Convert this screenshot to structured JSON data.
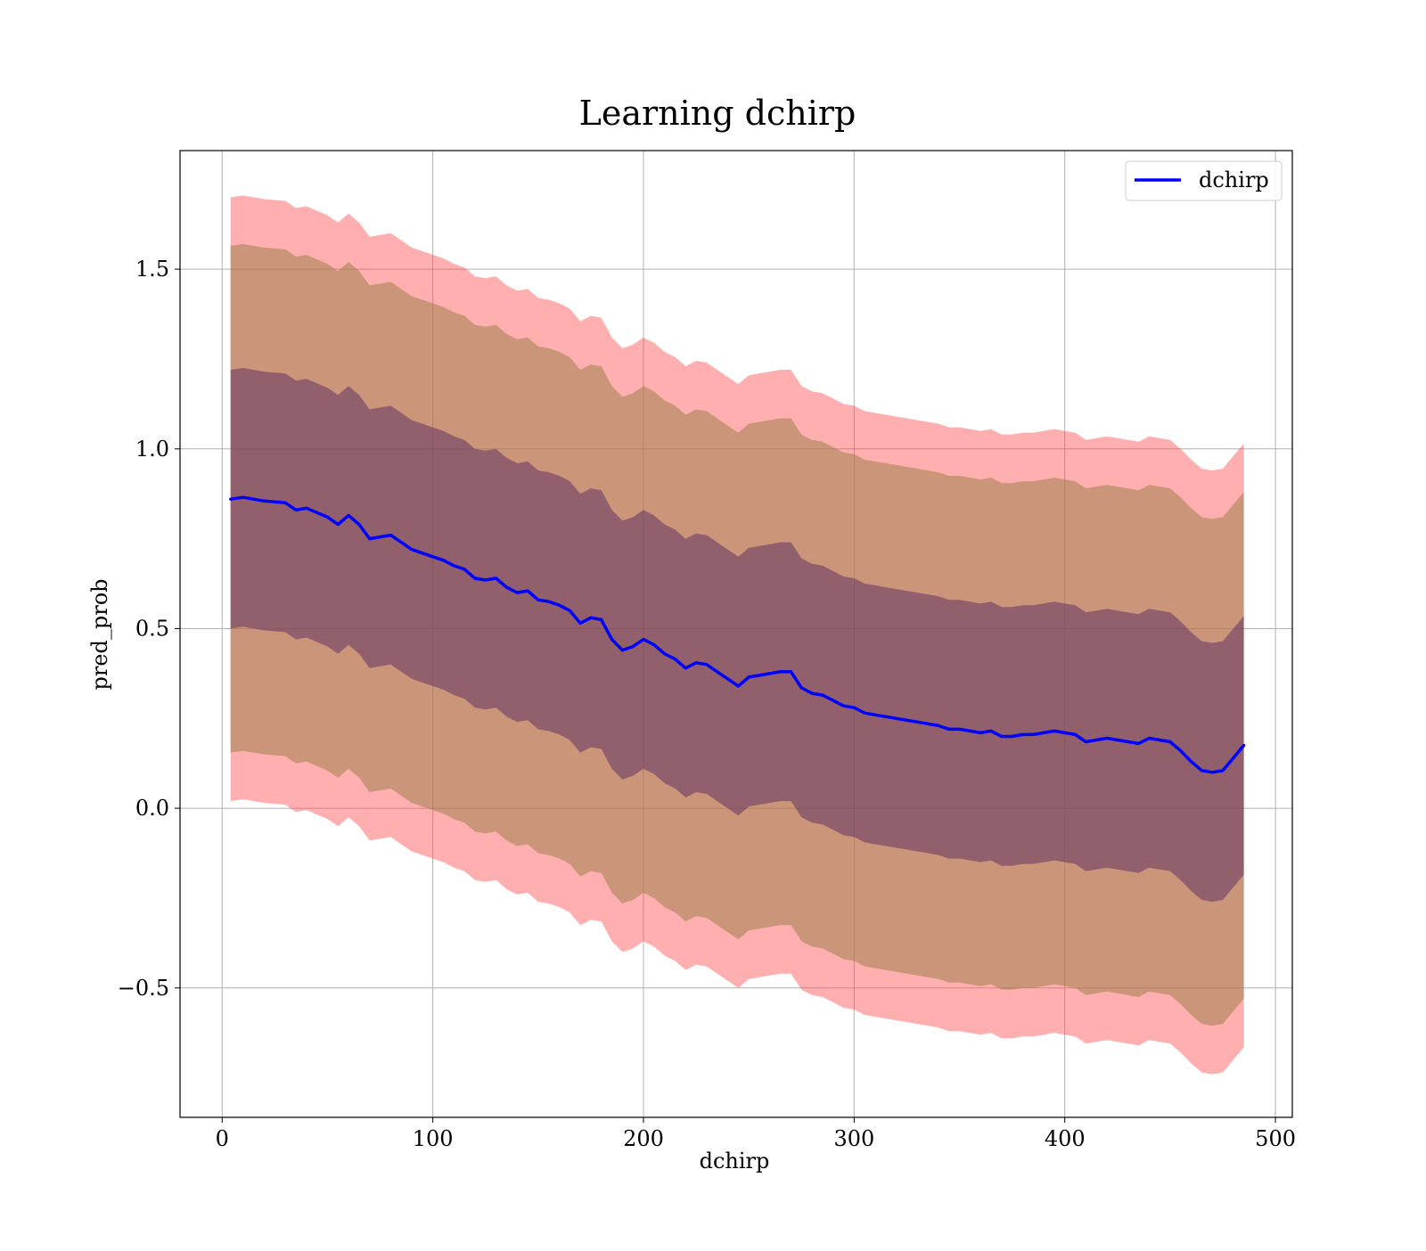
{
  "chart_data": {
    "type": "line",
    "title": "Learning dchirp",
    "xlabel": "dchirp",
    "ylabel": "pred_prob",
    "xlim": [
      -20,
      508
    ],
    "ylim": [
      -0.86,
      1.83
    ],
    "xticks": [
      0,
      100,
      200,
      300,
      400,
      500
    ],
    "xtick_labels": [
      "0",
      "100",
      "200",
      "300",
      "400",
      "500"
    ],
    "yticks": [
      -0.5,
      0.0,
      0.5,
      1.0,
      1.5
    ],
    "ytick_labels": [
      "−0.5",
      "0.0",
      "0.5",
      "1.0",
      "1.5"
    ],
    "grid": true,
    "legend_position": "upper right",
    "series": [
      {
        "name": "dchirp",
        "color": "#0000ff",
        "x": [
          4,
          10,
          20,
          30,
          35,
          40,
          50,
          55,
          60,
          65,
          70,
          75,
          80,
          85,
          90,
          95,
          100,
          105,
          110,
          115,
          120,
          125,
          130,
          135,
          140,
          145,
          150,
          155,
          160,
          165,
          170,
          175,
          180,
          185,
          190,
          195,
          200,
          205,
          210,
          215,
          220,
          225,
          230,
          235,
          240,
          245,
          250,
          255,
          260,
          265,
          270,
          275,
          280,
          285,
          290,
          295,
          300,
          305,
          310,
          315,
          320,
          325,
          330,
          335,
          340,
          345,
          350,
          355,
          360,
          365,
          370,
          375,
          380,
          385,
          390,
          395,
          400,
          405,
          410,
          415,
          420,
          425,
          430,
          435,
          440,
          445,
          450,
          455,
          460,
          465,
          470,
          475,
          480,
          485
        ],
        "y": [
          0.86,
          0.865,
          0.855,
          0.85,
          0.83,
          0.835,
          0.81,
          0.79,
          0.815,
          0.79,
          0.75,
          0.755,
          0.76,
          0.74,
          0.72,
          0.71,
          0.7,
          0.69,
          0.675,
          0.665,
          0.64,
          0.635,
          0.64,
          0.615,
          0.6,
          0.605,
          0.58,
          0.575,
          0.565,
          0.55,
          0.515,
          0.53,
          0.525,
          0.47,
          0.44,
          0.45,
          0.47,
          0.455,
          0.43,
          0.415,
          0.39,
          0.405,
          0.4,
          0.38,
          0.36,
          0.34,
          0.365,
          0.37,
          0.375,
          0.38,
          0.38,
          0.335,
          0.32,
          0.315,
          0.3,
          0.285,
          0.28,
          0.265,
          0.26,
          0.255,
          0.25,
          0.245,
          0.24,
          0.235,
          0.23,
          0.22,
          0.22,
          0.215,
          0.21,
          0.215,
          0.2,
          0.2,
          0.205,
          0.205,
          0.21,
          0.215,
          0.21,
          0.205,
          0.185,
          0.19,
          0.195,
          0.19,
          0.185,
          0.18,
          0.195,
          0.19,
          0.185,
          0.16,
          0.13,
          0.105,
          0.1,
          0.105,
          0.14,
          0.175
        ]
      }
    ],
    "bands": [
      {
        "color": "#ff4d4d",
        "opacity": 0.45,
        "half_width": 0.84
      },
      {
        "color": "#a0804d",
        "opacity": 0.55,
        "half_width": 0.705
      },
      {
        "color": "#5a2a5f",
        "opacity": 0.5,
        "half_width": 0.36
      }
    ]
  }
}
